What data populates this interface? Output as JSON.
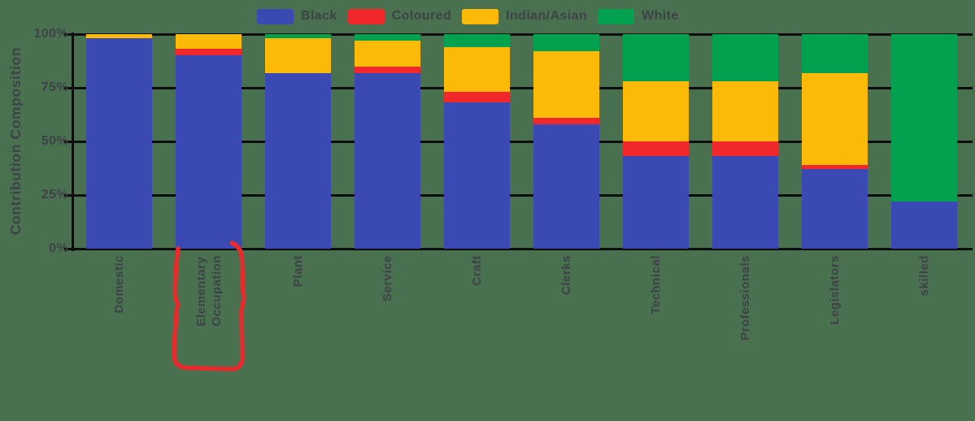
{
  "colors": {
    "background": "#497150",
    "grid": "#0D0D0D",
    "text": "#3E4347",
    "annotation": "#E92A2C"
  },
  "legend": {
    "position": "top",
    "entries": [
      "Black",
      "Coloured",
      "Indian/Asian",
      "White"
    ]
  },
  "chart_data": {
    "type": "bar",
    "variant": "stacked-percent",
    "title": "",
    "xlabel": "",
    "ylabel": "Contribution Composition",
    "ylim": [
      0,
      100
    ],
    "ytick_labels": [
      "0%",
      "25%",
      "50%",
      "75%",
      "100%"
    ],
    "ytick_values": [
      0,
      25,
      50,
      75,
      100
    ],
    "grid": true,
    "legend_position": "top",
    "categories": [
      "Domestic",
      "Elementary\nOccupation",
      "Plant",
      "Service",
      "Craft",
      "Clerks",
      "Technical",
      "Professionals",
      "Legislators",
      "skilled"
    ],
    "series": [
      {
        "name": "Black",
        "color": "#3B4AB2",
        "values": [
          98,
          90,
          82,
          82,
          68,
          58,
          43,
          43,
          37,
          22
        ]
      },
      {
        "name": "Coloured",
        "color": "#F0282C",
        "values": [
          0,
          3,
          0,
          3,
          5,
          3,
          7,
          7,
          2,
          0
        ]
      },
      {
        "name": "Indian/Asian",
        "color": "#FBBA08",
        "values": [
          2,
          7,
          16,
          12,
          21,
          31,
          28,
          28,
          43,
          0
        ]
      },
      {
        "name": "White",
        "color": "#02A14F",
        "values": [
          0,
          0,
          2,
          3,
          6,
          8,
          22,
          22,
          18,
          78
        ]
      }
    ],
    "annotation": {
      "type": "hand-drawn-highlight",
      "shape": "open-top-box",
      "target_category": "Elementary\nOccupation",
      "color": "#E92A2C"
    }
  }
}
